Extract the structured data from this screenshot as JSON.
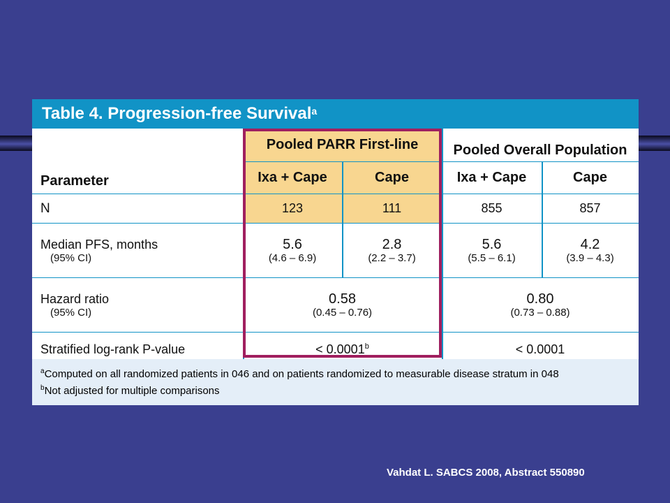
{
  "title": "Table 4. Progression-free Survival",
  "title_sup": "a",
  "group_headers": {
    "parr": "Pooled PARR First-line",
    "overall": "Pooled Overall Population"
  },
  "col_headers": {
    "parameter": "Parameter",
    "c1": "Ixa + Cape",
    "c2": "Cape",
    "c3": "Ixa + Cape",
    "c4": "Cape"
  },
  "rows": {
    "n": {
      "label": "N",
      "v1": "123",
      "v2": "111",
      "v3": "855",
      "v4": "857"
    },
    "pfs": {
      "label": "Median PFS, months",
      "sub": "(95% CI)",
      "v1": "5.6",
      "ci1": "(4.6 – 6.9)",
      "v2": "2.8",
      "ci2": "(2.2 – 3.7)",
      "v3": "5.6",
      "ci3": "(5.5 – 6.1)",
      "v4": "4.2",
      "ci4": "(3.9 – 4.3)"
    },
    "hr": {
      "label": "Hazard ratio",
      "sub": "(95% CI)",
      "v1": "0.58",
      "ci1": "(0.45 – 0.76)",
      "v2": "0.80",
      "ci2": "(0.73 – 0.88)"
    },
    "p": {
      "label": "Stratified log-rank P-value",
      "v1": "< 0.0001",
      "v1_sup": "b",
      "v2": "< 0.0001"
    }
  },
  "footnotes": {
    "a_mark": "a",
    "a": "Computed on all randomized patients in 046 and on patients randomized to measurable disease stratum in 048",
    "b_mark": "b",
    "b": "Not adjusted for multiple comparisons"
  },
  "citation": "Vahdat L. SABCS 2008, Abstract 550890",
  "colors": {
    "background": "#3a3f8f",
    "header": "#1193c6",
    "highlight": "#f8d690",
    "outline": "#a01f5f",
    "footer": "#e4eef8"
  }
}
